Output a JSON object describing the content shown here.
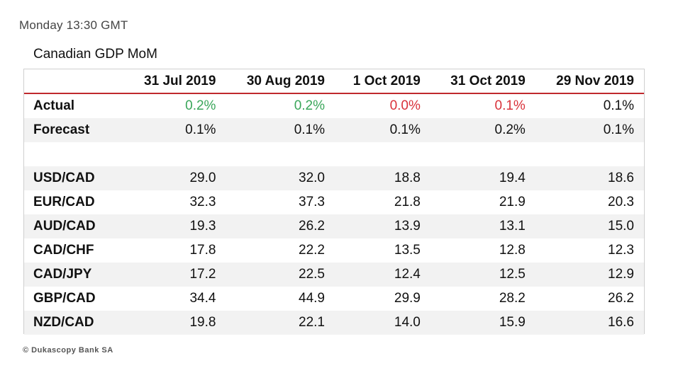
{
  "timestamp": "Monday 13:30 GMT",
  "title": "Canadian GDP MoM",
  "columns": [
    "31 Jul 2019",
    "30 Aug 2019",
    "1 Oct 2019",
    "31 Oct 2019",
    "29 Nov 2019"
  ],
  "colors": {
    "positive": "#3aa65a",
    "negative": "#d9323a",
    "header_rule": "#c0282d"
  },
  "rows": [
    {
      "label": "Actual",
      "values": [
        "0.2%",
        "0.2%",
        "0.0%",
        "0.1%",
        "0.1%"
      ],
      "styles": [
        "pos",
        "pos",
        "neg",
        "neg",
        ""
      ]
    },
    {
      "label": "Forecast",
      "values": [
        "0.1%",
        "0.1%",
        "0.1%",
        "0.2%",
        "0.1%"
      ],
      "styles": [
        "",
        "",
        "",
        "",
        ""
      ]
    },
    {
      "label": "",
      "values": [
        "",
        "",
        "",
        "",
        ""
      ],
      "styles": [
        "",
        "",
        "",
        "",
        ""
      ]
    },
    {
      "label": "USD/CAD",
      "values": [
        "29.0",
        "32.0",
        "18.8",
        "19.4",
        "18.6"
      ],
      "styles": [
        "",
        "",
        "",
        "",
        ""
      ]
    },
    {
      "label": "EUR/CAD",
      "values": [
        "32.3",
        "37.3",
        "21.8",
        "21.9",
        "20.3"
      ],
      "styles": [
        "",
        "",
        "",
        "",
        ""
      ]
    },
    {
      "label": "AUD/CAD",
      "values": [
        "19.3",
        "26.2",
        "13.9",
        "13.1",
        "15.0"
      ],
      "styles": [
        "",
        "",
        "",
        "",
        ""
      ]
    },
    {
      "label": "CAD/CHF",
      "values": [
        "17.8",
        "22.2",
        "13.5",
        "12.8",
        "12.3"
      ],
      "styles": [
        "",
        "",
        "",
        "",
        ""
      ]
    },
    {
      "label": "CAD/JPY",
      "values": [
        "17.2",
        "22.5",
        "12.4",
        "12.5",
        "12.9"
      ],
      "styles": [
        "",
        "",
        "",
        "",
        ""
      ]
    },
    {
      "label": "GBP/CAD",
      "values": [
        "34.4",
        "44.9",
        "29.9",
        "28.2",
        "26.2"
      ],
      "styles": [
        "",
        "",
        "",
        "",
        ""
      ]
    },
    {
      "label": "NZD/CAD",
      "values": [
        "19.8",
        "22.1",
        "14.0",
        "15.9",
        "16.6"
      ],
      "styles": [
        "",
        "",
        "",
        "",
        ""
      ]
    }
  ],
  "credit": "© Dukascopy Bank SA"
}
